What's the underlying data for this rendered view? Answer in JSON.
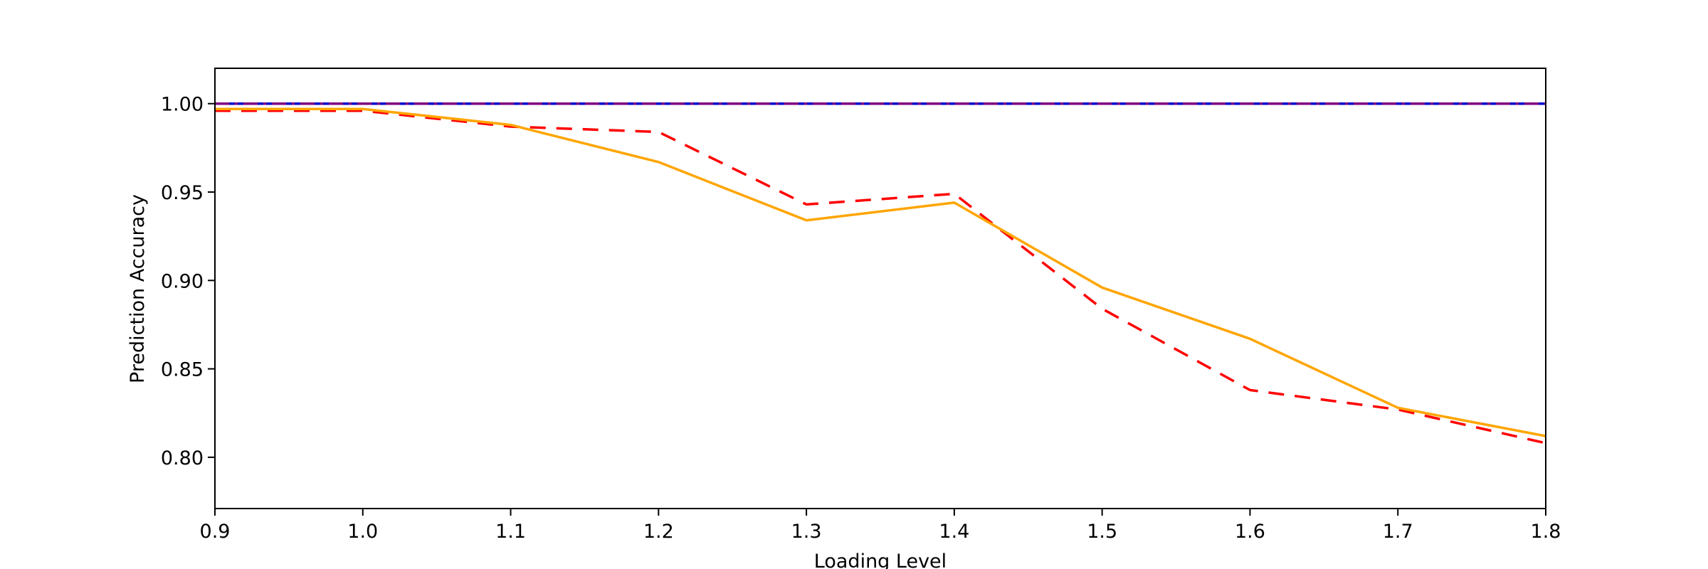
{
  "chart_data": {
    "type": "line",
    "title": "",
    "xlabel": "Loading Level",
    "ylabel": "Prediction Accuracy",
    "xlim": [
      0.9,
      1.8
    ],
    "ylim": [
      0.771,
      1.02
    ],
    "x_ticks": [
      "0.9",
      "1.0",
      "1.1",
      "1.2",
      "1.3",
      "1.4",
      "1.5",
      "1.6",
      "1.7",
      "1.8"
    ],
    "y_ticks": [
      "0.80",
      "0.85",
      "0.90",
      "0.95",
      "1.00"
    ],
    "grid": false,
    "legend": "none",
    "x": [
      0.9,
      1.0,
      1.1,
      1.2,
      1.3,
      1.4,
      1.5,
      1.6,
      1.7,
      1.8
    ],
    "series": [
      {
        "values": [
          1.0,
          1.0,
          1.0,
          1.0,
          1.0,
          1.0,
          1.0,
          1.0,
          1.0,
          1.0
        ],
        "color": "#00bfff",
        "style": "dotted"
      },
      {
        "values": [
          1.0,
          1.0,
          1.0,
          1.0,
          1.0,
          1.0,
          1.0,
          1.0,
          1.0,
          1.0
        ],
        "color": "#0000cd",
        "style": "solid"
      },
      {
        "values": [
          1.0,
          1.0,
          1.0,
          1.0,
          1.0,
          1.0,
          1.0,
          1.0,
          1.0,
          1.0
        ],
        "color": "#800080",
        "style": "dashdot"
      },
      {
        "values": [
          0.996,
          0.996,
          0.987,
          0.984,
          0.943,
          0.949,
          0.884,
          0.838,
          0.827,
          0.808
        ],
        "color": "#ff0000",
        "style": "dashed"
      },
      {
        "values": [
          0.997,
          0.997,
          0.988,
          0.967,
          0.934,
          0.944,
          0.896,
          0.867,
          0.828,
          0.812
        ],
        "color": "#ffa500",
        "style": "solid"
      }
    ]
  }
}
